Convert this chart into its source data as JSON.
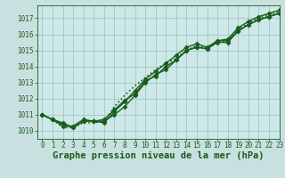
{
  "title": "Graphe pression niveau de la mer (hPa)",
  "bg_color": "#c8e0e0",
  "plot_bg_color": "#cce8e8",
  "line_color": "#1a5c1a",
  "grid_color": "#9cc0b8",
  "xlim": [
    -0.5,
    23
  ],
  "ylim": [
    1009.5,
    1017.8
  ],
  "yticks": [
    1010,
    1011,
    1012,
    1013,
    1014,
    1015,
    1016,
    1017
  ],
  "xticks": [
    0,
    1,
    2,
    3,
    4,
    5,
    6,
    7,
    8,
    9,
    10,
    11,
    12,
    13,
    14,
    15,
    16,
    17,
    18,
    19,
    20,
    21,
    22,
    23
  ],
  "series": [
    {
      "data": [
        1011.0,
        1010.7,
        1010.5,
        1010.2,
        1010.6,
        1010.6,
        1010.6,
        1011.0,
        1011.5,
        1012.2,
        1013.0,
        1013.5,
        1013.8,
        1014.4,
        1015.0,
        1015.2,
        1015.1,
        1015.5,
        1015.5,
        1016.2,
        1016.6,
        1016.9,
        1017.1,
        1017.3
      ],
      "linestyle": "-",
      "marker": "D",
      "markersize": 2.5,
      "linewidth": 1.0
    },
    {
      "data": [
        1011.0,
        1010.7,
        1010.2,
        1010.2,
        1010.5,
        1010.5,
        1010.6,
        1011.5,
        1012.2,
        1012.8,
        1013.3,
        1013.8,
        1014.2,
        1014.5,
        1015.0,
        1015.3,
        1015.1,
        1015.5,
        1015.6,
        1016.3,
        1016.7,
        1017.0,
        1017.2,
        1017.4
      ],
      "linestyle": ":",
      "marker": null,
      "markersize": 0,
      "linewidth": 1.2
    },
    {
      "data": [
        1011.0,
        1010.7,
        1010.4,
        1010.2,
        1010.6,
        1010.6,
        1010.5,
        1011.2,
        1011.8,
        1012.5,
        1013.2,
        1013.7,
        1014.2,
        1014.7,
        1015.2,
        1015.4,
        1015.2,
        1015.6,
        1015.7,
        1016.4,
        1016.8,
        1017.1,
        1017.3,
        1017.5
      ],
      "linestyle": "-",
      "marker": "D",
      "markersize": 2.5,
      "linewidth": 1.0
    },
    {
      "data": [
        1011.0,
        1010.7,
        1010.3,
        1010.3,
        1010.7,
        1010.6,
        1010.7,
        1011.3,
        1011.9,
        1012.3,
        1013.1,
        1013.4,
        1014.0,
        1014.4,
        1015.0,
        1015.2,
        1015.1,
        1015.6,
        1015.6,
        1016.2,
        1016.6,
        1016.9,
        1017.1,
        1017.3
      ],
      "linestyle": "-",
      "marker": "D",
      "markersize": 2.5,
      "linewidth": 1.0
    }
  ],
  "font_color": "#1a5c1a",
  "tick_fontsize": 5.5,
  "title_fontsize": 7.5
}
